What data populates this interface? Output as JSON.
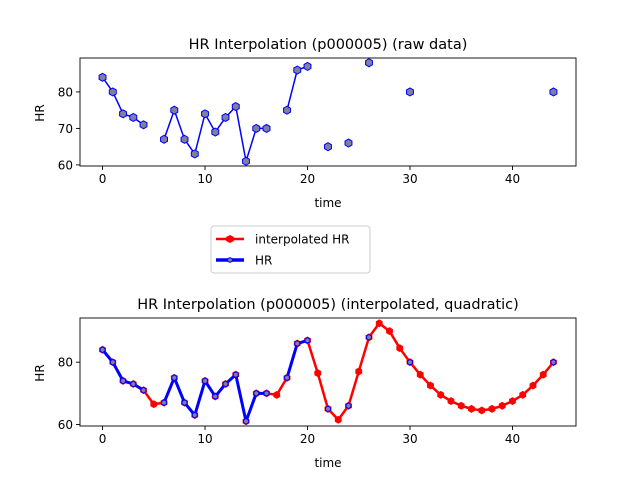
{
  "chart_data": [
    {
      "type": "line",
      "title": "HR Interpolation (p000005) (raw data)",
      "xlabel": "time",
      "ylabel": "HR",
      "xlim": [
        -2.2,
        46.2
      ],
      "ylim": [
        59.7,
        89.3
      ],
      "xticks": [
        0,
        10,
        20,
        30,
        40
      ],
      "yticks": [
        60,
        70,
        80
      ],
      "grid": false,
      "series": [
        {
          "name": "HR",
          "color": "#0000ff",
          "marker_fill": "#7f7f9f",
          "segments": [
            [
              [
                0,
                84
              ],
              [
                1,
                80
              ],
              [
                2,
                74
              ],
              [
                3,
                73
              ],
              [
                4,
                71
              ]
            ],
            [
              [
                6,
                67
              ],
              [
                7,
                75
              ],
              [
                8,
                67
              ],
              [
                9,
                63
              ],
              [
                10,
                74
              ],
              [
                11,
                69
              ],
              [
                12,
                73
              ],
              [
                13,
                76
              ],
              [
                14,
                61
              ],
              [
                15,
                70
              ],
              [
                16,
                70
              ]
            ],
            [
              [
                18,
                75
              ],
              [
                19,
                86
              ],
              [
                20,
                87
              ]
            ],
            [
              [
                22,
                65
              ]
            ],
            [
              [
                24,
                66
              ]
            ],
            [
              [
                26,
                88
              ]
            ],
            [
              [
                30,
                80
              ]
            ],
            [
              [
                44,
                80
              ]
            ]
          ]
        }
      ]
    },
    {
      "type": "line",
      "title": "HR Interpolation (p000005) (interpolated, quadratic)",
      "xlabel": "time",
      "ylabel": "HR",
      "xlim": [
        -2.2,
        46.2
      ],
      "ylim": [
        59.5,
        94.2
      ],
      "xticks": [
        0,
        10,
        20,
        30,
        40
      ],
      "yticks": [
        60,
        80
      ],
      "grid": false,
      "series": [
        {
          "name": "interpolated HR",
          "color": "#ff0000",
          "points": [
            [
              0,
              84
            ],
            [
              1,
              80
            ],
            [
              2,
              74
            ],
            [
              3,
              73
            ],
            [
              4,
              71
            ],
            [
              5,
              66.5
            ],
            [
              6,
              67
            ],
            [
              7,
              75
            ],
            [
              8,
              67
            ],
            [
              9,
              63
            ],
            [
              10,
              74
            ],
            [
              11,
              69
            ],
            [
              12,
              73
            ],
            [
              13,
              76
            ],
            [
              14,
              61
            ],
            [
              15,
              70
            ],
            [
              16,
              70
            ],
            [
              17,
              69.5
            ],
            [
              18,
              75
            ],
            [
              19,
              86
            ],
            [
              20,
              87
            ],
            [
              21,
              76.5
            ],
            [
              22,
              65
            ],
            [
              23,
              61.5
            ],
            [
              24,
              66
            ],
            [
              25,
              77
            ],
            [
              26,
              88
            ],
            [
              27,
              92.5
            ],
            [
              28,
              90
            ],
            [
              29,
              84.5
            ],
            [
              30,
              80
            ],
            [
              31,
              76
            ],
            [
              32,
              72.5
            ],
            [
              33,
              69.5
            ],
            [
              34,
              67.5
            ],
            [
              35,
              66
            ],
            [
              36,
              65
            ],
            [
              37,
              64.5
            ],
            [
              38,
              65
            ],
            [
              39,
              66
            ],
            [
              40,
              67.5
            ],
            [
              41,
              69.5
            ],
            [
              42,
              72.5
            ],
            [
              43,
              76
            ],
            [
              44,
              80
            ]
          ]
        },
        {
          "name": "HR",
          "color": "#0000ff",
          "marker_fill": "#7f7f9f",
          "segments": [
            [
              [
                0,
                84
              ],
              [
                1,
                80
              ],
              [
                2,
                74
              ],
              [
                3,
                73
              ],
              [
                4,
                71
              ]
            ],
            [
              [
                6,
                67
              ],
              [
                7,
                75
              ],
              [
                8,
                67
              ],
              [
                9,
                63
              ],
              [
                10,
                74
              ],
              [
                11,
                69
              ],
              [
                12,
                73
              ],
              [
                13,
                76
              ],
              [
                14,
                61
              ],
              [
                15,
                70
              ],
              [
                16,
                70
              ]
            ],
            [
              [
                18,
                75
              ],
              [
                19,
                86
              ],
              [
                20,
                87
              ]
            ],
            [
              [
                22,
                65
              ]
            ],
            [
              [
                24,
                66
              ]
            ],
            [
              [
                26,
                88
              ]
            ],
            [
              [
                30,
                80
              ]
            ],
            [
              [
                44,
                80
              ]
            ]
          ]
        }
      ],
      "legend": {
        "placement": "between plots",
        "entries": [
          "interpolated HR",
          "HR"
        ]
      }
    }
  ]
}
